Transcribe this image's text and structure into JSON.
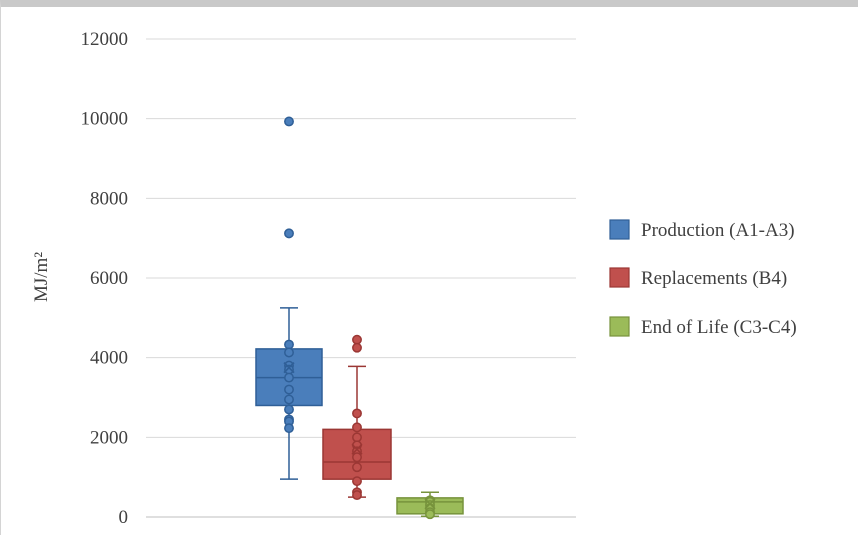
{
  "chart_data": {
    "type": "box",
    "title": "",
    "xlabel": "",
    "ylabel": "MJ/m²",
    "ylim": [
      0,
      12000
    ],
    "yticks": [
      0,
      2000,
      4000,
      6000,
      8000,
      10000,
      12000
    ],
    "grid": true,
    "legend_position": "right",
    "series": [
      {
        "name": "Production (A1-A3)",
        "color": "#4a7ebb",
        "stroke": "#2f5f97",
        "min": 950,
        "q1": 2800,
        "median": 3500,
        "q3": 4220,
        "max": 5250,
        "mean": 3750,
        "points": [
          9930,
          7120,
          4330,
          4130,
          3800,
          3700,
          3500,
          3200,
          2950,
          2700,
          2450,
          2400,
          2230
        ]
      },
      {
        "name": "Replacements (B4)",
        "color": "#c0504d",
        "stroke": "#9b3734",
        "min": 500,
        "q1": 950,
        "median": 1380,
        "q3": 2200,
        "max": 3780,
        "mean": 1700,
        "points": [
          4450,
          4250,
          2600,
          2250,
          2000,
          1800,
          1650,
          1500,
          1250,
          900,
          620,
          550
        ]
      },
      {
        "name": "End of Life (C3-C4)",
        "color": "#9bbb59",
        "stroke": "#77933c",
        "min": 20,
        "q1": 80,
        "median": 380,
        "q3": 480,
        "max": 620,
        "mean": 330,
        "points": [
          420,
          380,
          300,
          220,
          120,
          70
        ]
      }
    ]
  }
}
